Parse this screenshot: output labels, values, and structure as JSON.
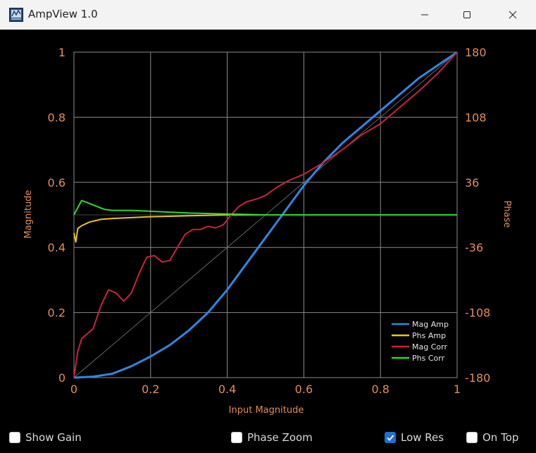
{
  "window": {
    "title": "AmpView 1.0",
    "icon": "ampview-app-icon",
    "controls": [
      "minimize-icon",
      "maximize-icon",
      "close-icon"
    ]
  },
  "chart_data": {
    "type": "line",
    "title": "",
    "xlabel": "Input Magnitude",
    "ylabel": "Magnitude",
    "y2label": "Phase",
    "xlim": [
      0,
      1
    ],
    "ylim": [
      0,
      1
    ],
    "y2lim": [
      -180,
      180
    ],
    "x_ticks": [
      "0",
      "0.2",
      "0.4",
      "0.6",
      "0.8",
      "1"
    ],
    "y_ticks": [
      "0",
      "0.2",
      "0.4",
      "0.6",
      "0.8",
      "1"
    ],
    "y2_ticks": [
      "-180",
      "-108",
      "-36",
      "36",
      "108",
      "180"
    ],
    "grid": true,
    "legend_position": "bottom-right",
    "series": [
      {
        "name": "Mag Amp",
        "axis": "left",
        "color": "#2f86e0",
        "x": [
          0,
          0.05,
          0.1,
          0.15,
          0.2,
          0.25,
          0.3,
          0.35,
          0.4,
          0.45,
          0.5,
          0.55,
          0.6,
          0.65,
          0.7,
          0.75,
          0.8,
          0.85,
          0.9,
          0.95,
          1.0
        ],
        "y": [
          0,
          0.003,
          0.012,
          0.035,
          0.065,
          0.1,
          0.145,
          0.2,
          0.27,
          0.35,
          0.43,
          0.51,
          0.59,
          0.66,
          0.72,
          0.77,
          0.82,
          0.87,
          0.92,
          0.96,
          1.0
        ]
      },
      {
        "name": "Phs Amp",
        "axis": "right",
        "color": "#e6c619",
        "x": [
          0,
          0.005,
          0.01,
          0.02,
          0.04,
          0.07,
          0.1,
          0.15,
          0.2,
          0.3,
          0.4,
          0.5,
          0.6,
          0.7,
          0.8,
          0.9,
          1.0
        ],
        "y": [
          -20,
          -30,
          -15,
          -12,
          -8,
          -5,
          -4,
          -3,
          -2,
          -1,
          0,
          0,
          0,
          0,
          0,
          0,
          0
        ]
      },
      {
        "name": "Mag Corr",
        "axis": "left",
        "color": "#c8243c",
        "x": [
          0,
          0.01,
          0.02,
          0.03,
          0.05,
          0.07,
          0.09,
          0.11,
          0.13,
          0.15,
          0.17,
          0.19,
          0.21,
          0.23,
          0.25,
          0.27,
          0.29,
          0.31,
          0.33,
          0.35,
          0.37,
          0.39,
          0.41,
          0.43,
          0.45,
          0.48,
          0.5,
          0.53,
          0.56,
          0.6,
          0.65,
          0.7,
          0.75,
          0.8,
          0.85,
          0.9,
          0.95,
          1.0
        ],
        "y": [
          0,
          0.08,
          0.12,
          0.13,
          0.15,
          0.22,
          0.27,
          0.26,
          0.235,
          0.26,
          0.32,
          0.37,
          0.375,
          0.355,
          0.36,
          0.4,
          0.44,
          0.455,
          0.455,
          0.465,
          0.46,
          0.47,
          0.5,
          0.525,
          0.54,
          0.55,
          0.56,
          0.585,
          0.605,
          0.625,
          0.66,
          0.7,
          0.745,
          0.78,
          0.83,
          0.88,
          0.935,
          1.0
        ]
      },
      {
        "name": "Phs Corr",
        "axis": "right",
        "color": "#2fd62f",
        "x": [
          0,
          0.02,
          0.05,
          0.08,
          0.1,
          0.15,
          0.2,
          0.25,
          0.3,
          0.4,
          0.5,
          0.6,
          0.7,
          0.8,
          0.9,
          1.0
        ],
        "y": [
          0,
          16,
          11,
          6,
          5,
          5,
          4,
          3,
          2,
          1,
          0,
          0,
          0,
          0,
          0,
          0
        ]
      }
    ]
  },
  "controls": {
    "show_gain": {
      "label": "Show Gain",
      "checked": false
    },
    "phase_zoom": {
      "label": "Phase Zoom",
      "checked": false
    },
    "low_res": {
      "label": "Low Res",
      "checked": true
    },
    "on_top": {
      "label": "On Top",
      "checked": false
    }
  },
  "colors": {
    "axis_text": "#e08e58",
    "grid": "#8a8a8a",
    "diagonal": "#666666",
    "check_accent": "#1f6fd0"
  }
}
